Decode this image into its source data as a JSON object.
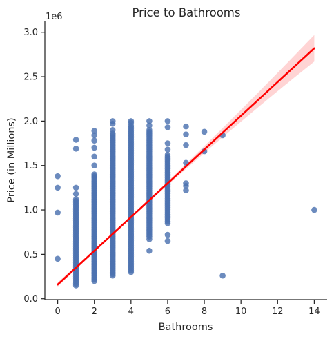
{
  "chart_data": {
    "type": "scatter",
    "title": "Price to Bathrooms",
    "xlabel": "Bathrooms",
    "ylabel": "Price (in Millions)",
    "y_offset_label": "1e6",
    "xlim": [
      -0.7,
      14.7
    ],
    "ylim": [
      -0.01,
      3.13
    ],
    "x_ticks": [
      0,
      2,
      4,
      6,
      8,
      10,
      12,
      14
    ],
    "y_ticks": [
      0.0,
      0.5,
      1.0,
      1.5,
      2.0,
      2.5,
      3.0
    ],
    "x_tick_labels": [
      "0",
      "2",
      "4",
      "6",
      "8",
      "10",
      "12",
      "14"
    ],
    "y_tick_labels": [
      "0.0",
      "0.5",
      "1.0",
      "1.5",
      "2.0",
      "2.5",
      "3.0"
    ],
    "grid": false,
    "colors": {
      "points": "#4c72b0",
      "fit_line": "#ff0000",
      "ci_band": "#ffcccc",
      "axis": "#262626"
    },
    "series": [
      {
        "values": [
          {
            "x": 0,
            "y": 0.45
          },
          {
            "x": 0,
            "y": 0.97
          },
          {
            "x": 0,
            "y": 1.25
          },
          {
            "x": 0,
            "y": 1.38
          },
          {
            "x": 1,
            "y": 1.79
          },
          {
            "x": 1,
            "y": 1.69
          },
          {
            "x": 1,
            "y": 1.25
          },
          {
            "x": 1,
            "y": 1.18
          },
          {
            "x": 2,
            "y": 1.89
          },
          {
            "x": 2,
            "y": 1.84
          },
          {
            "x": 2,
            "y": 1.78
          },
          {
            "x": 2,
            "y": 1.7
          },
          {
            "x": 2,
            "y": 1.6
          },
          {
            "x": 2,
            "y": 1.5
          },
          {
            "x": 3,
            "y": 2.0
          },
          {
            "x": 3,
            "y": 1.97
          },
          {
            "x": 3,
            "y": 1.9
          },
          {
            "x": 4,
            "y": 2.0
          },
          {
            "x": 4,
            "y": 1.98
          },
          {
            "x": 5,
            "y": 2.0
          },
          {
            "x": 5,
            "y": 1.95
          },
          {
            "x": 5,
            "y": 0.54
          },
          {
            "x": 5,
            "y": 0.67
          },
          {
            "x": 6,
            "y": 2.0
          },
          {
            "x": 6,
            "y": 1.93
          },
          {
            "x": 6,
            "y": 1.75
          },
          {
            "x": 6,
            "y": 1.68
          },
          {
            "x": 6,
            "y": 0.65
          },
          {
            "x": 6,
            "y": 0.72
          },
          {
            "x": 7,
            "y": 1.94
          },
          {
            "x": 7,
            "y": 1.85
          },
          {
            "x": 7,
            "y": 1.73
          },
          {
            "x": 7,
            "y": 1.53
          },
          {
            "x": 7,
            "y": 1.3
          },
          {
            "x": 7,
            "y": 1.27
          },
          {
            "x": 7,
            "y": 1.22
          },
          {
            "x": 8,
            "y": 1.88
          },
          {
            "x": 8,
            "y": 1.66
          },
          {
            "x": 9,
            "y": 1.84
          },
          {
            "x": 9,
            "y": 0.26
          },
          {
            "x": 14,
            "y": 1.0
          }
        ],
        "dense_columns": [
          {
            "x": 1,
            "y_min": 0.15,
            "y_max": 1.12
          },
          {
            "x": 2,
            "y_min": 0.2,
            "y_max": 1.4
          },
          {
            "x": 3,
            "y_min": 0.26,
            "y_max": 1.86
          },
          {
            "x": 4,
            "y_min": 0.3,
            "y_max": 1.95
          },
          {
            "x": 5,
            "y_min": 0.7,
            "y_max": 1.9
          },
          {
            "x": 6,
            "y_min": 0.85,
            "y_max": 1.62
          }
        ]
      }
    ],
    "regression": {
      "x": [
        0,
        14
      ],
      "y": [
        0.16,
        2.82
      ],
      "ci_halfwidth_at_ends": [
        0.03,
        0.15
      ]
    }
  }
}
